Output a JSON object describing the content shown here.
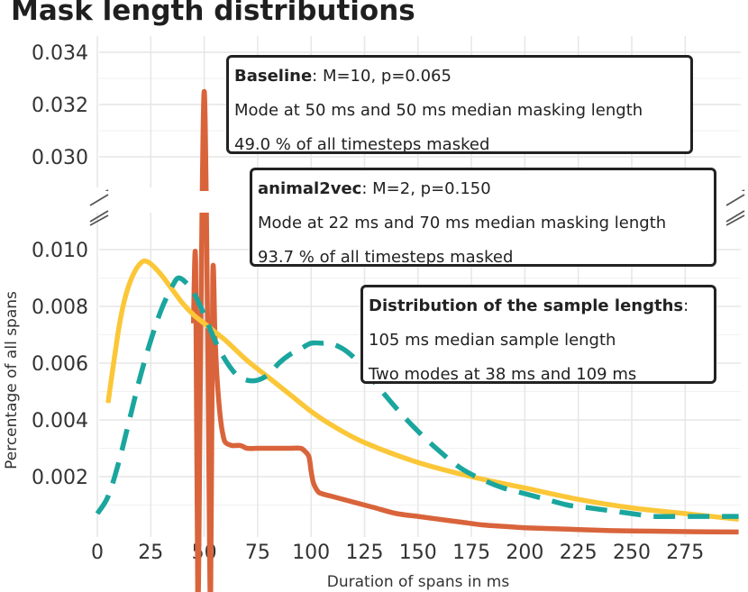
{
  "chart_data": {
    "type": "line",
    "title": "Mask length distributions",
    "xlabel": "Duration of spans in ms",
    "ylabel": "Percentage of all spans",
    "xlim": [
      0,
      300
    ],
    "x_ticks": [
      "0",
      "25",
      "50",
      "75",
      "100",
      "125",
      "150",
      "175",
      "200",
      "225",
      "250",
      "275"
    ],
    "y_ticks_lower": [
      "0.002",
      "0.004",
      "0.006",
      "0.008",
      "0.010"
    ],
    "y_ticks_upper": [
      "0.030",
      "0.032",
      "0.034"
    ],
    "broken_y_axis": true,
    "grid": true,
    "series": [
      {
        "name": "Baseline",
        "color": "#d9643b",
        "style": "solid",
        "x": [
          45,
          46,
          47,
          48,
          49,
          50,
          51,
          52,
          53,
          54,
          55,
          56,
          57,
          58,
          59,
          60,
          63,
          67,
          70,
          75,
          80,
          85,
          90,
          95,
          97,
          99,
          100,
          101,
          103,
          105,
          110,
          120,
          130,
          140,
          150,
          160,
          170,
          180,
          190,
          200,
          220,
          240,
          260,
          280,
          300
        ],
        "y": [
          0.0074,
          0.0095,
          0.013,
          0.02,
          0.028,
          0.0325,
          0.028,
          0.02,
          0.013,
          0.009,
          0.007,
          0.0055,
          0.0045,
          0.0038,
          0.0034,
          0.0032,
          0.0031,
          0.0031,
          0.003,
          0.003,
          0.003,
          0.003,
          0.003,
          0.003,
          0.0029,
          0.0027,
          0.0022,
          0.0018,
          0.0015,
          0.0014,
          0.0013,
          0.0011,
          0.0009,
          0.0007,
          0.0006,
          0.0005,
          0.0004,
          0.0003,
          0.00025,
          0.0002,
          0.00015,
          0.0001,
          8e-05,
          6e-05,
          5e-05
        ]
      },
      {
        "name": "animal2vec",
        "color": "#fbc738",
        "style": "solid",
        "x": [
          5,
          8,
          10,
          12,
          15,
          18,
          20,
          22,
          25,
          30,
          35,
          40,
          45,
          50,
          55,
          60,
          70,
          80,
          90,
          100,
          110,
          125,
          150,
          175,
          200,
          225,
          250,
          275,
          300
        ],
        "y": [
          0.0046,
          0.0062,
          0.0072,
          0.008,
          0.0088,
          0.0093,
          0.0095,
          0.0096,
          0.0095,
          0.0091,
          0.0086,
          0.0081,
          0.0077,
          0.0074,
          0.0071,
          0.0068,
          0.0061,
          0.0055,
          0.0049,
          0.0043,
          0.0038,
          0.0032,
          0.0025,
          0.002,
          0.0016,
          0.0012,
          0.0009,
          0.0007,
          0.0005
        ]
      },
      {
        "name": "Distribution of the sample lengths",
        "color": "#1aa69e",
        "style": "dashed",
        "x": [
          0,
          5,
          10,
          15,
          20,
          25,
          30,
          35,
          38,
          42,
          45,
          50,
          55,
          60,
          65,
          70,
          75,
          80,
          85,
          90,
          95,
          100,
          105,
          109,
          115,
          120,
          125,
          130,
          140,
          150,
          160,
          170,
          180,
          190,
          200,
          210,
          220,
          230,
          240,
          250,
          260,
          270,
          280,
          290,
          300
        ],
        "y": [
          0.0007,
          0.0013,
          0.0025,
          0.004,
          0.0055,
          0.0068,
          0.0079,
          0.0087,
          0.009,
          0.0088,
          0.0085,
          0.0077,
          0.0068,
          0.0061,
          0.0056,
          0.0054,
          0.0054,
          0.0056,
          0.006,
          0.0063,
          0.0065,
          0.0067,
          0.0067,
          0.0067,
          0.0065,
          0.0062,
          0.0058,
          0.0053,
          0.0044,
          0.0036,
          0.0029,
          0.0023,
          0.0019,
          0.0016,
          0.0014,
          0.0012,
          0.001,
          0.0009,
          0.0008,
          0.0007,
          0.0006,
          0.0006,
          0.0006,
          0.0006,
          0.0006
        ]
      }
    ],
    "annotations": [
      {
        "series": "Baseline",
        "header_bold": "Baseline",
        "header_rest": ": M=10, p=0.065",
        "line2": "Mode at 50 ms and 50 ms median masking length",
        "line3": "49.0 % of all timesteps masked"
      },
      {
        "series": "animal2vec",
        "header_bold": "animal2vec",
        "header_rest": ": M=2, p=0.150",
        "line2": "Mode at 22 ms and 70 ms median masking length",
        "line3": "93.7 % of all timesteps masked"
      },
      {
        "series": "Distribution of the sample lengths",
        "header_bold": "Distribution of the sample lengths",
        "header_rest": ":",
        "line2": "105 ms median sample length",
        "line3": "Two modes at 38 ms and 109 ms"
      }
    ]
  }
}
